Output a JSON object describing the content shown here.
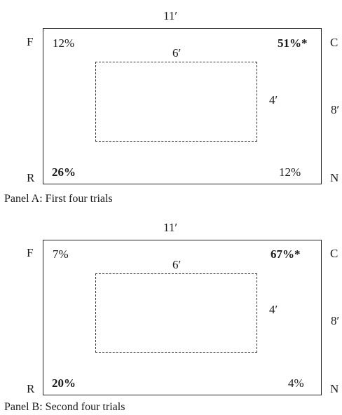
{
  "panels": [
    {
      "outer_width_label": "11′",
      "outer_height_label": "8′",
      "inner_width_label": "6′",
      "inner_height_label": "4′",
      "corners": {
        "top_left": {
          "letter": "F",
          "value": "12%",
          "bold": false
        },
        "top_right": {
          "letter": "C",
          "value": "51%*",
          "bold": true
        },
        "bottom_left": {
          "letter": "R",
          "value": "26%",
          "bold": true
        },
        "bottom_right": {
          "letter": "N",
          "value": "12%",
          "bold": false
        }
      },
      "caption": "Panel A: First four trials"
    },
    {
      "outer_width_label": "11′",
      "outer_height_label": "8′",
      "inner_width_label": "6′",
      "inner_height_label": "4′",
      "corners": {
        "top_left": {
          "letter": "F",
          "value": "7%",
          "bold": false
        },
        "top_right": {
          "letter": "C",
          "value": "67%*",
          "bold": true
        },
        "bottom_left": {
          "letter": "R",
          "value": "20%",
          "bold": true
        },
        "bottom_right": {
          "letter": "N",
          "value": "4%",
          "bold": false
        }
      },
      "caption": "Panel B: Second four trials"
    }
  ]
}
